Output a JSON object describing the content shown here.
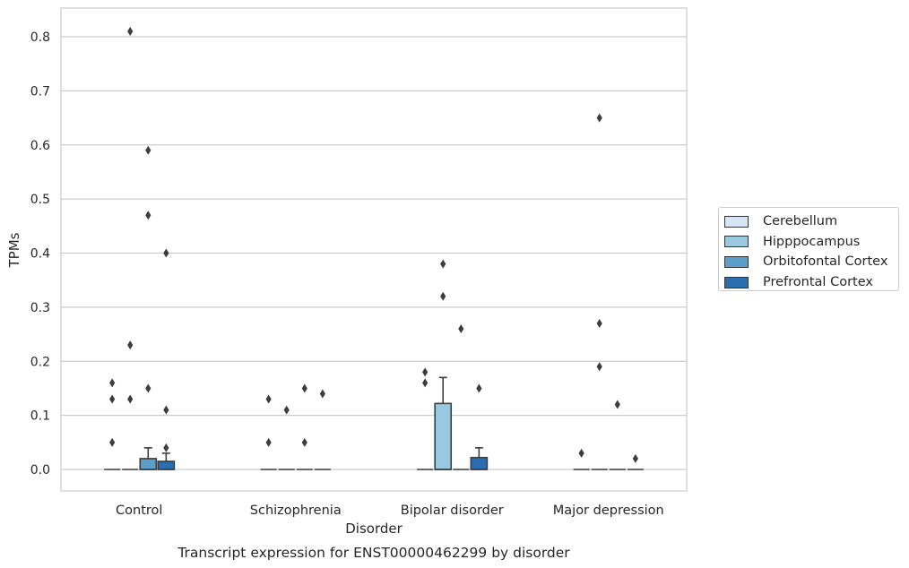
{
  "chart_data": {
    "type": "box",
    "title": "Transcript expression for ENST00000462299 by disorder",
    "xlabel": "Disorder",
    "ylabel": "TPMs",
    "categories": [
      "Control",
      "Schizophrenia",
      "Bipolar disorder",
      "Major depression"
    ],
    "ylim": [
      -0.04,
      0.85
    ],
    "yticks": [
      0.0,
      0.1,
      0.2,
      0.3,
      0.4,
      0.5,
      0.6,
      0.7,
      0.8
    ],
    "ytick_labels": [
      "0.0",
      "0.1",
      "0.2",
      "0.3",
      "0.4",
      "0.5",
      "0.6",
      "0.7",
      "0.8"
    ],
    "grid": true,
    "legend_position": "right",
    "series": [
      {
        "name": "Cerebellum",
        "color": "#d6e6f4",
        "boxes": [
          {
            "q1": 0,
            "median": 0,
            "q3": 0,
            "whislo": 0,
            "whishi": 0,
            "fliers": [
              0.05,
              0.13,
              0.16
            ]
          },
          {
            "q1": 0,
            "median": 0,
            "q3": 0,
            "whislo": 0,
            "whishi": 0,
            "fliers": [
              0.05,
              0.13
            ]
          },
          {
            "q1": 0,
            "median": 0,
            "q3": 0,
            "whislo": 0,
            "whishi": 0,
            "fliers": [
              0.16,
              0.18
            ]
          },
          {
            "q1": 0,
            "median": 0,
            "q3": 0,
            "whislo": 0,
            "whishi": 0,
            "fliers": [
              0.03
            ]
          }
        ]
      },
      {
        "name": "Hipppocampus",
        "color": "#9ac8e0",
        "boxes": [
          {
            "q1": 0,
            "median": 0,
            "q3": 0,
            "whislo": 0,
            "whishi": 0,
            "fliers": [
              0.13,
              0.23,
              0.81
            ]
          },
          {
            "q1": 0,
            "median": 0,
            "q3": 0,
            "whislo": 0,
            "whishi": 0,
            "fliers": [
              0.11
            ]
          },
          {
            "q1": 0,
            "median": 0,
            "q3": 0.122,
            "whislo": 0,
            "whishi": 0.17,
            "fliers": [
              0.32,
              0.38
            ]
          },
          {
            "q1": 0,
            "median": 0,
            "q3": 0,
            "whislo": 0,
            "whishi": 0,
            "fliers": [
              0.19,
              0.27,
              0.65
            ]
          }
        ]
      },
      {
        "name": "Orbitofontal Cortex",
        "color": "#5a9ec9",
        "boxes": [
          {
            "q1": 0,
            "median": 0,
            "q3": 0.02,
            "whislo": 0,
            "whishi": 0.04,
            "fliers": [
              0.15,
              0.47,
              0.59
            ]
          },
          {
            "q1": 0,
            "median": 0,
            "q3": 0,
            "whislo": 0,
            "whishi": 0,
            "fliers": [
              0.05,
              0.15
            ]
          },
          {
            "q1": 0,
            "median": 0,
            "q3": 0,
            "whislo": 0,
            "whishi": 0,
            "fliers": [
              0.26
            ]
          },
          {
            "q1": 0,
            "median": 0,
            "q3": 0,
            "whislo": 0,
            "whishi": 0,
            "fliers": [
              0.12
            ]
          }
        ]
      },
      {
        "name": "Prefrontal Cortex",
        "color": "#2a6eb0",
        "boxes": [
          {
            "q1": 0,
            "median": 0,
            "q3": 0.015,
            "whislo": 0,
            "whishi": 0.03,
            "fliers": [
              0.04,
              0.11,
              0.4
            ]
          },
          {
            "q1": 0,
            "median": 0,
            "q3": 0,
            "whislo": 0,
            "whishi": 0,
            "fliers": [
              0.14
            ]
          },
          {
            "q1": 0,
            "median": 0,
            "q3": 0.022,
            "whislo": 0,
            "whishi": 0.04,
            "fliers": [
              0.15
            ]
          },
          {
            "q1": 0,
            "median": 0,
            "q3": 0,
            "whislo": 0,
            "whishi": 0,
            "fliers": [
              0.02
            ]
          }
        ]
      }
    ]
  }
}
